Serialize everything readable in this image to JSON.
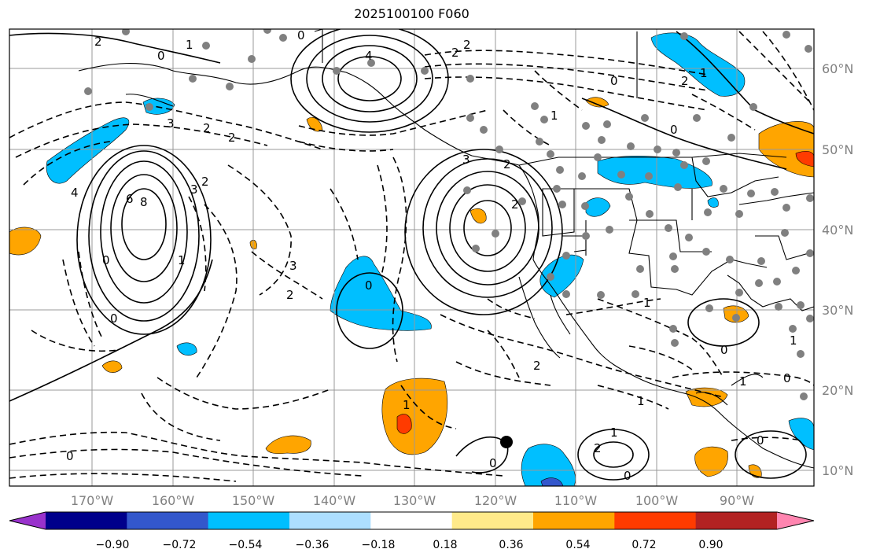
{
  "title": "2025100100 F060",
  "lat_labels": [
    "60°N",
    "50°N",
    "40°N",
    "30°N",
    "20°N",
    "10°N"
  ],
  "lon_labels": [
    "170°W",
    "160°W",
    "150°W",
    "140°W",
    "130°W",
    "120°W",
    "110°W",
    "100°W",
    "90°W"
  ],
  "colorbar": {
    "ticks": [
      "−0.90",
      "−0.72",
      "−0.54",
      "−0.36",
      "−0.18",
      "0.18",
      "0.36",
      "0.54",
      "0.72",
      "0.90"
    ],
    "colors": [
      "#9932CC",
      "#00008B",
      "#3357CC",
      "#00BFFF",
      "#ADDFFF",
      "#FFFFFF",
      "#FFEA8A",
      "#FFA500",
      "#FF3B00",
      "#B22222",
      "#FF85B0"
    ]
  },
  "contour_labels": [
    "0",
    "0",
    "1",
    "2",
    "2",
    "2",
    "2",
    "3",
    "4",
    "6",
    "8",
    "3",
    "2",
    "1",
    "0",
    "3",
    "2",
    "0",
    "4",
    "2",
    "2",
    "0",
    "1",
    "0",
    "3",
    "2",
    "2",
    "1",
    "0",
    "1",
    "0",
    "1",
    "2",
    "1",
    "0",
    "1",
    "0",
    "1",
    "0",
    "2",
    "0",
    "0",
    "1"
  ],
  "colors": {
    "grid": "#999999",
    "contour": "#000000",
    "coast": "#000000",
    "station": "#808080"
  }
}
